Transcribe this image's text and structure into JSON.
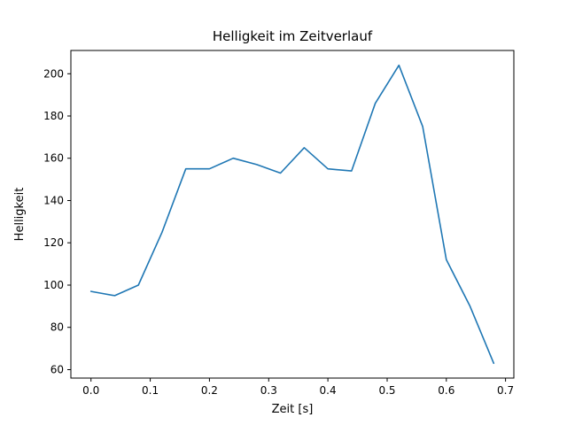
{
  "chart_data": {
    "type": "line",
    "title": "Helligkeit im Zeitverlauf",
    "xlabel": "Zeit [s]",
    "ylabel": "Helligkeit",
    "x": [
      0.0,
      0.04,
      0.08,
      0.12,
      0.16,
      0.2,
      0.24,
      0.28,
      0.32,
      0.36,
      0.4,
      0.44,
      0.48,
      0.52,
      0.56,
      0.6,
      0.64,
      0.68
    ],
    "y": [
      97,
      95,
      100,
      125,
      155,
      155,
      160,
      157,
      153,
      165,
      155,
      154,
      186,
      204,
      175,
      112,
      90,
      63
    ],
    "xlim": [
      -0.034,
      0.714
    ],
    "ylim": [
      56,
      211
    ],
    "xticks": [
      0.0,
      0.1,
      0.2,
      0.3,
      0.4,
      0.5,
      0.6,
      0.7
    ],
    "xtick_labels": [
      "0.0",
      "0.1",
      "0.2",
      "0.3",
      "0.4",
      "0.5",
      "0.6",
      "0.7"
    ],
    "yticks": [
      60,
      80,
      100,
      120,
      140,
      160,
      180,
      200
    ],
    "ytick_labels": [
      "60",
      "80",
      "100",
      "120",
      "140",
      "160",
      "180",
      "200"
    ],
    "line_color": "#1f77b4",
    "axes_color": "#000000",
    "background_color": "#ffffff",
    "grid": false,
    "legend": null
  }
}
